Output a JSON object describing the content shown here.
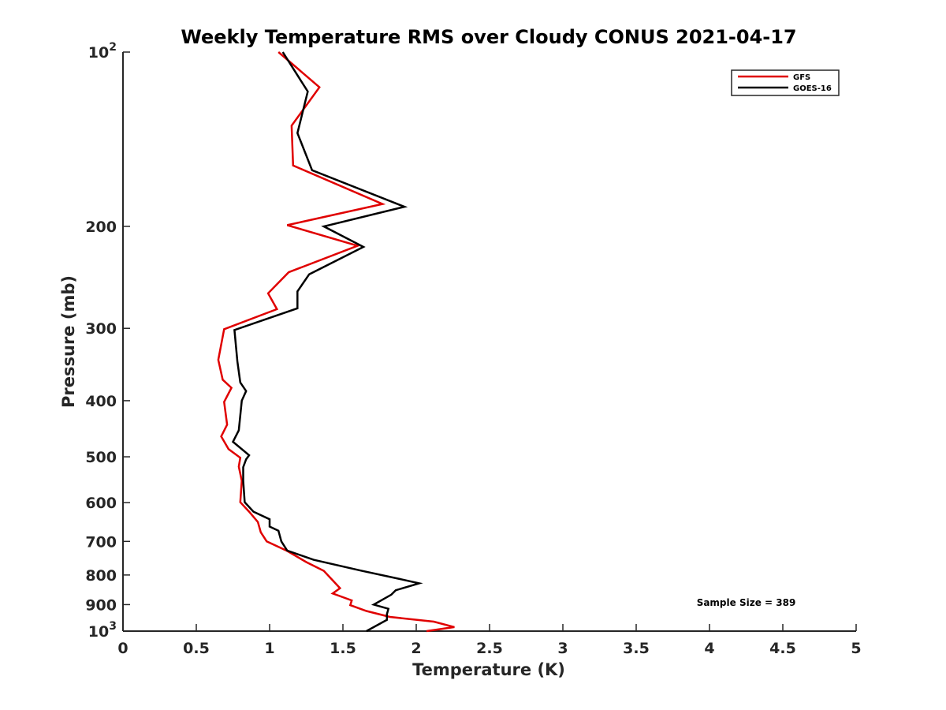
{
  "chart_data": {
    "type": "line",
    "title": "Weekly Temperature RMS over Cloudy CONUS 2021-04-17",
    "xlabel": "Temperature (K)",
    "ylabel": "Pressure (mb)",
    "xlim": [
      0,
      5
    ],
    "ylim": [
      100,
      1000
    ],
    "y_scale": "log",
    "y_reversed": true,
    "grid": false,
    "legend_position": "top-right",
    "x_ticks": [
      "0",
      "0.5",
      "1",
      "1.5",
      "2",
      "2.5",
      "3",
      "3.5",
      "4",
      "4.5",
      "5"
    ],
    "y_ticks": [
      {
        "value": 100,
        "label": "10",
        "sup": "2"
      },
      {
        "value": 200,
        "label": "200"
      },
      {
        "value": 300,
        "label": "300"
      },
      {
        "value": 400,
        "label": "400"
      },
      {
        "value": 500,
        "label": "500"
      },
      {
        "value": 600,
        "label": "600"
      },
      {
        "value": 700,
        "label": "700"
      },
      {
        "value": 800,
        "label": "800"
      },
      {
        "value": 900,
        "label": "900"
      },
      {
        "value": 1000,
        "label": "10",
        "sup": "3"
      }
    ],
    "series": [
      {
        "name": "GFS",
        "color": "#e00000",
        "points": [
          [
            1.06,
            100
          ],
          [
            1.34,
            115
          ],
          [
            1.15,
            134
          ],
          [
            1.16,
            157
          ],
          [
            1.77,
            183
          ],
          [
            1.12,
            199
          ],
          [
            1.6,
            216
          ],
          [
            1.13,
            240
          ],
          [
            0.99,
            261
          ],
          [
            1.05,
            278
          ],
          [
            0.69,
            301
          ],
          [
            0.65,
            340
          ],
          [
            0.68,
            368
          ],
          [
            0.74,
            380
          ],
          [
            0.69,
            402
          ],
          [
            0.71,
            440
          ],
          [
            0.67,
            461
          ],
          [
            0.72,
            485
          ],
          [
            0.8,
            502
          ],
          [
            0.79,
            520
          ],
          [
            0.81,
            550
          ],
          [
            0.8,
            599
          ],
          [
            0.86,
            622
          ],
          [
            0.92,
            648
          ],
          [
            0.94,
            675
          ],
          [
            0.98,
            700
          ],
          [
            1.12,
            727
          ],
          [
            1.25,
            760
          ],
          [
            1.37,
            787
          ],
          [
            1.48,
            843
          ],
          [
            1.43,
            861
          ],
          [
            1.56,
            885
          ],
          [
            1.55,
            902
          ],
          [
            1.66,
            923
          ],
          [
            1.82,
            945
          ],
          [
            2.12,
            963
          ],
          [
            2.26,
            984
          ],
          [
            2.07,
            1000
          ]
        ]
      },
      {
        "name": "GOES-16",
        "color": "#000000",
        "points": [
          [
            1.09,
            100
          ],
          [
            1.26,
            117
          ],
          [
            1.19,
            138
          ],
          [
            1.29,
            160
          ],
          [
            1.92,
            185
          ],
          [
            1.37,
            200
          ],
          [
            1.64,
            217
          ],
          [
            1.27,
            242
          ],
          [
            1.19,
            259
          ],
          [
            1.19,
            277
          ],
          [
            0.76,
            302
          ],
          [
            0.78,
            342
          ],
          [
            0.8,
            372
          ],
          [
            0.84,
            385
          ],
          [
            0.81,
            400
          ],
          [
            0.79,
            450
          ],
          [
            0.75,
            471
          ],
          [
            0.86,
            497
          ],
          [
            0.84,
            505
          ],
          [
            0.82,
            521
          ],
          [
            0.82,
            550
          ],
          [
            0.83,
            599
          ],
          [
            0.89,
            622
          ],
          [
            1.0,
            641
          ],
          [
            1.0,
            660
          ],
          [
            1.06,
            671
          ],
          [
            1.08,
            700
          ],
          [
            1.12,
            726
          ],
          [
            1.3,
            753
          ],
          [
            1.62,
            786
          ],
          [
            1.88,
            812
          ],
          [
            2.02,
            827
          ],
          [
            1.86,
            850
          ],
          [
            1.83,
            865
          ],
          [
            1.71,
            900
          ],
          [
            1.81,
            915
          ],
          [
            1.8,
            935
          ],
          [
            1.8,
            956
          ],
          [
            1.66,
            1000
          ]
        ]
      }
    ],
    "annotations": [
      {
        "text": "Sample Size = 389",
        "x": 4.25,
        "y": 905
      }
    ]
  }
}
